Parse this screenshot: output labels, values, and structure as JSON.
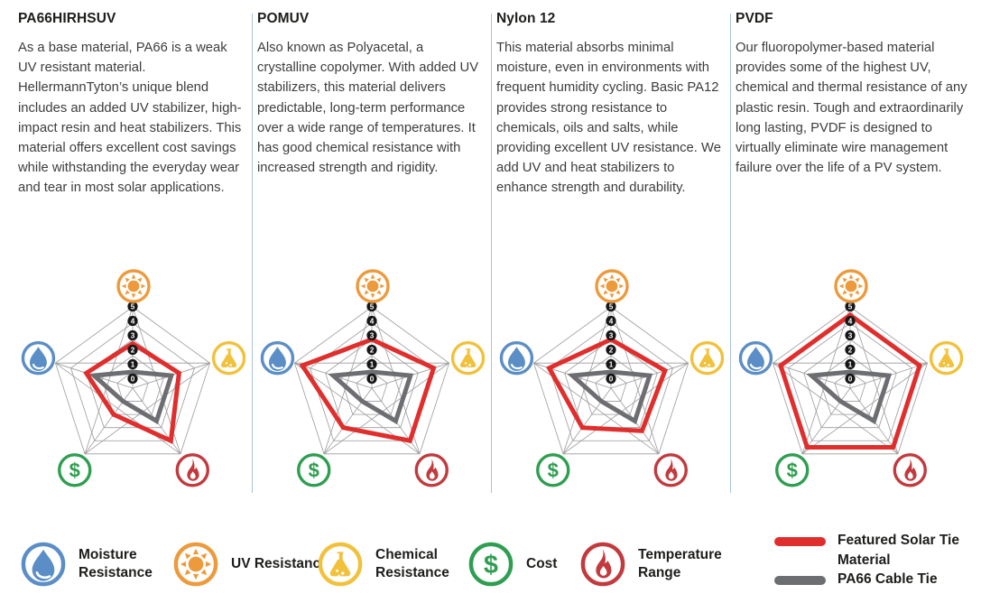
{
  "colors": {
    "blue": "#5B8EC6",
    "orange": "#EC9A3C",
    "yellow": "#F2C13B",
    "green": "#2E9E50",
    "red": "#C23A3E",
    "featured_red": "#E02E2D",
    "cable_gray": "#6D6E71",
    "grid": "#9B9B9B",
    "badge": "#161616",
    "divider": "#A9C2D8"
  },
  "columns": [
    {
      "title": "PA66HIRHSUV",
      "description": "As a base material, PA66 is a weak UV resistant material. HellermannTyton’s unique blend includes an added UV stabilizer, high-impact resin and heat stabilizers. This material offers excellent cost savings while withstanding the everyday wear and tear in most solar applications."
    },
    {
      "title": "POMUV",
      "description": "Also known as Polyacetal, a crystalline copolymer. With added UV stabilizers, this material delivers predictable, long-term performance over a wide range of temperatures. It has good chemical resistance with increased strength and rigidity."
    },
    {
      "title": "Nylon 12",
      "description": "This material absorbs minimal moisture, even in environments with frequent humidity cycling. Basic PA12 provides strong resistance to chemicals, oils and salts, while providing excellent UV resistance. We add UV and heat stabilizers to enhance strength and durability."
    },
    {
      "title": "PVDF",
      "description": "Our fluoropolymer-based material provides some of the highest UV, chemical and thermal resistance of any plastic resin. Tough and extraordinarily long lasting, PVDF is designed to virtually eliminate wire management failure over the life of a PV system."
    }
  ],
  "chart_data": [
    {
      "type": "radar",
      "title": "PA66HIRHSUV",
      "categories": [
        "UV Resistance",
        "Chemical Resistance",
        "Temperature Range",
        "Cost",
        "Moisture Resistance"
      ],
      "ticks": [
        0,
        1,
        2,
        3,
        4,
        5
      ],
      "scale": [
        0,
        5
      ],
      "series": [
        {
          "name": "Featured Solar Tie Material",
          "color_key": "featured_red",
          "values": [
            2.75,
            3,
            4,
            2,
            3
          ]
        },
        {
          "name": "PA66 Cable Tie",
          "color_key": "cable_gray",
          "values": [
            1,
            2.5,
            2.5,
            1,
            2.5
          ]
        }
      ]
    },
    {
      "type": "radar",
      "title": "POMUV",
      "categories": [
        "UV Resistance",
        "Chemical Resistance",
        "Temperature Range",
        "Cost",
        "Moisture Resistance"
      ],
      "ticks": [
        0,
        1,
        2,
        3,
        4,
        5
      ],
      "scale": [
        0,
        5
      ],
      "series": [
        {
          "name": "Featured Solar Tie Material",
          "color_key": "featured_red",
          "values": [
            3,
            4,
            4,
            3,
            4.5
          ]
        },
        {
          "name": "PA66 Cable Tie",
          "color_key": "cable_gray",
          "values": [
            1,
            2.5,
            2.5,
            1,
            2.5
          ]
        }
      ]
    },
    {
      "type": "radar",
      "title": "Nylon 12",
      "categories": [
        "UV Resistance",
        "Chemical Resistance",
        "Temperature Range",
        "Cost",
        "Moisture Resistance"
      ],
      "ticks": [
        0,
        1,
        2,
        3,
        4,
        5
      ],
      "scale": [
        0,
        5
      ],
      "series": [
        {
          "name": "Featured Solar Tie Material",
          "color_key": "featured_red",
          "values": [
            3,
            3.5,
            3.25,
            3,
            4
          ]
        },
        {
          "name": "PA66 Cable Tie",
          "color_key": "cable_gray",
          "values": [
            1,
            2.5,
            2.5,
            1,
            2.5
          ]
        }
      ]
    },
    {
      "type": "radar",
      "title": "PVDF",
      "categories": [
        "UV Resistance",
        "Chemical Resistance",
        "Temperature Range",
        "Cost",
        "Moisture Resistance"
      ],
      "ticks": [
        0,
        1,
        2,
        3,
        4,
        5
      ],
      "scale": [
        0,
        5
      ],
      "series": [
        {
          "name": "Featured Solar Tie Material",
          "color_key": "featured_red",
          "values": [
            4.5,
            4.5,
            4.5,
            4.5,
            4.5
          ]
        },
        {
          "name": "PA66 Cable Tie",
          "color_key": "cable_gray",
          "values": [
            1,
            2.5,
            2.5,
            1,
            2.5
          ]
        }
      ]
    }
  ],
  "legend": {
    "axes": [
      {
        "label": "Moisture Resistance",
        "icon": "droplet-icon",
        "color_key": "blue"
      },
      {
        "label": "UV Resistance",
        "icon": "sun-icon",
        "color_key": "orange"
      },
      {
        "label": "Chemical Resistance",
        "icon": "flask-icon",
        "color_key": "yellow"
      },
      {
        "label": "Cost",
        "icon": "dollar-icon",
        "color_key": "green"
      },
      {
        "label": "Temperature Range",
        "icon": "flame-icon",
        "color_key": "red"
      }
    ],
    "series": [
      {
        "label": "Featured Solar Tie Material",
        "color_key": "featured_red"
      },
      {
        "label": "PA66 Cable Tie",
        "color_key": "cable_gray"
      }
    ]
  }
}
